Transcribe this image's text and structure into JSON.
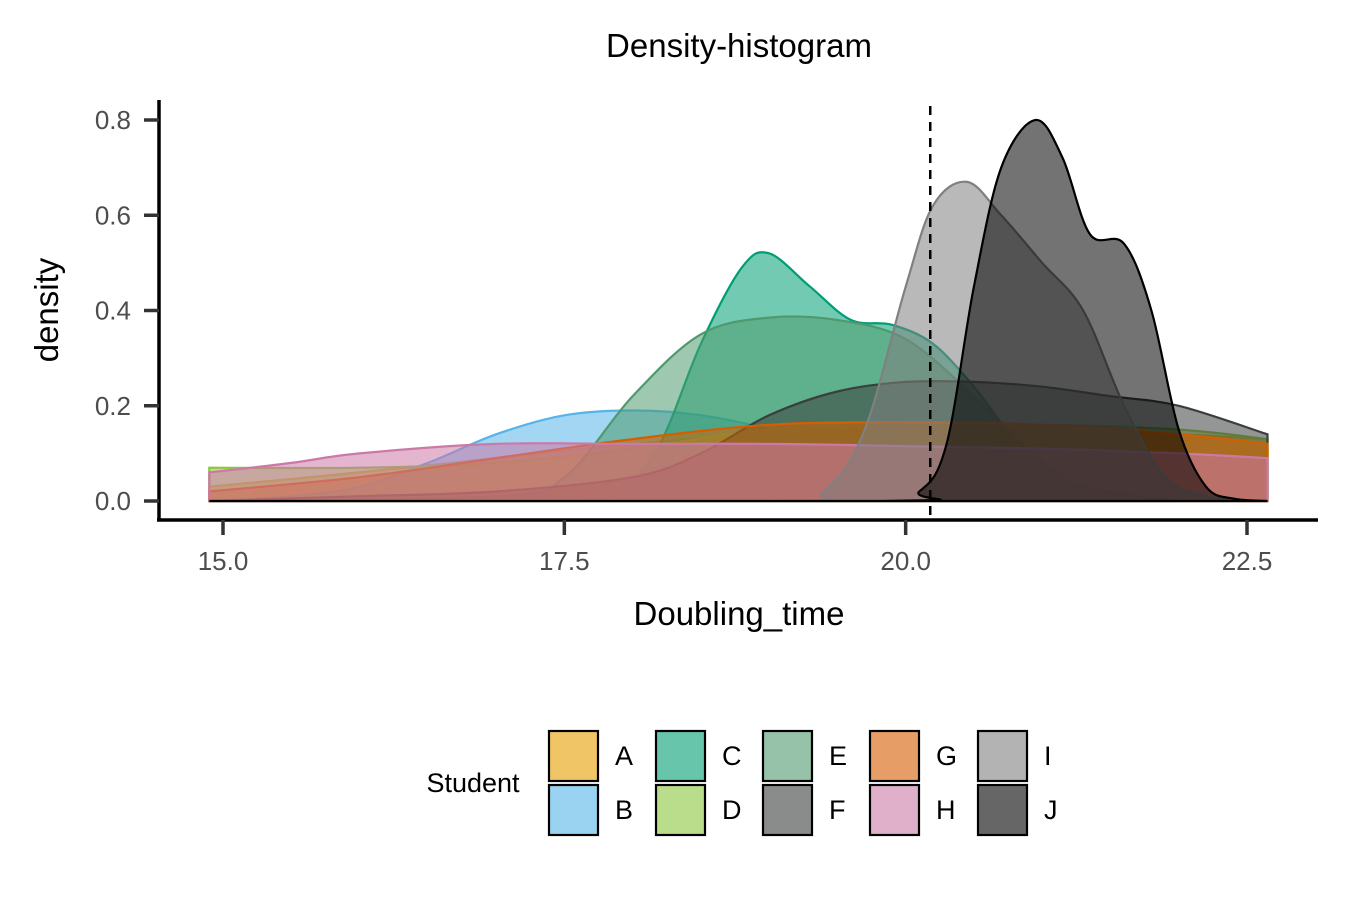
{
  "chart_data": {
    "type": "area",
    "title": "Density-histogram",
    "xlabel": "Doubling_time",
    "ylabel": "density",
    "xlim": [
      14.9,
      22.65
    ],
    "ylim": [
      0,
      0.8
    ],
    "x_ticks": [
      {
        "value": 15.0,
        "label": "15.0"
      },
      {
        "value": 17.5,
        "label": "17.5"
      },
      {
        "value": 20.0,
        "label": "20.0"
      },
      {
        "value": 22.5,
        "label": "22.5"
      }
    ],
    "y_ticks": [
      {
        "value": 0.0,
        "label": "0.0"
      },
      {
        "value": 0.2,
        "label": "0.2"
      },
      {
        "value": 0.4,
        "label": "0.4"
      },
      {
        "value": 0.6,
        "label": "0.6"
      },
      {
        "value": 0.8,
        "label": "0.8"
      }
    ],
    "vline": {
      "x": 20.18,
      "style": "dashed"
    },
    "legend": {
      "title": "Student",
      "position": "bottom"
    },
    "grid": false,
    "series": [
      {
        "name": "A",
        "fill": "#E69F00",
        "stroke": "#E69F00",
        "x": [
          14.9,
          16.0,
          17.0,
          18.0,
          19.0,
          20.0,
          21.0,
          22.0,
          22.65
        ],
        "y": [
          0.03,
          0.06,
          0.09,
          0.12,
          0.14,
          0.15,
          0.15,
          0.14,
          0.13
        ]
      },
      {
        "name": "B",
        "fill": "#56B4E9",
        "stroke": "#56B4E9",
        "x": [
          14.9,
          15.5,
          16.0,
          16.5,
          17.0,
          17.5,
          18.0,
          18.5,
          19.0,
          19.5,
          20.0,
          20.5,
          21.0,
          21.5,
          22.0
        ],
        "y": [
          0.0,
          0.01,
          0.03,
          0.08,
          0.14,
          0.18,
          0.19,
          0.18,
          0.15,
          0.1,
          0.06,
          0.03,
          0.01,
          0.0,
          0.0
        ]
      },
      {
        "name": "C",
        "fill": "#009E73",
        "stroke": "#009E73",
        "x": [
          14.9,
          17.5,
          17.9,
          18.2,
          18.5,
          18.8,
          19.0,
          19.3,
          19.6,
          19.9,
          20.2,
          20.5,
          20.8,
          21.2,
          21.6,
          22.0,
          22.65
        ],
        "y": [
          0.0,
          0.0,
          0.02,
          0.12,
          0.33,
          0.49,
          0.52,
          0.45,
          0.38,
          0.37,
          0.33,
          0.24,
          0.13,
          0.04,
          0.01,
          0.0,
          0.0
        ]
      },
      {
        "name": "D",
        "fill": "#8CC63E",
        "stroke": "#8CC63E",
        "x": [
          14.9,
          16.0,
          17.0,
          18.0,
          19.0,
          20.0,
          21.0,
          22.0,
          22.65
        ],
        "y": [
          0.07,
          0.07,
          0.08,
          0.11,
          0.15,
          0.16,
          0.16,
          0.15,
          0.13
        ]
      },
      {
        "name": "E",
        "fill": "#4E9A6E",
        "stroke": "#4E9A6E",
        "x": [
          14.9,
          17.0,
          17.5,
          18.0,
          18.5,
          19.0,
          19.5,
          20.0,
          20.5,
          21.0,
          21.3,
          21.7,
          22.0
        ],
        "y": [
          0.0,
          0.01,
          0.05,
          0.22,
          0.35,
          0.385,
          0.38,
          0.34,
          0.22,
          0.08,
          0.03,
          0.01,
          0.0
        ]
      },
      {
        "name": "F",
        "fill": "#3A3F3D",
        "stroke": "#3A3F3D",
        "x": [
          14.9,
          16.0,
          17.0,
          18.0,
          18.5,
          19.0,
          19.5,
          20.0,
          20.5,
          21.0,
          21.5,
          22.0,
          22.65
        ],
        "y": [
          0.0,
          0.01,
          0.02,
          0.05,
          0.1,
          0.18,
          0.23,
          0.25,
          0.25,
          0.24,
          0.22,
          0.2,
          0.14
        ]
      },
      {
        "name": "G",
        "fill": "#D55E00",
        "stroke": "#D55E00",
        "x": [
          14.9,
          16.0,
          17.0,
          18.0,
          19.0,
          20.0,
          21.0,
          22.0,
          22.65
        ],
        "y": [
          0.02,
          0.05,
          0.09,
          0.13,
          0.16,
          0.165,
          0.16,
          0.14,
          0.12
        ]
      },
      {
        "name": "H",
        "fill": "#CC79A7",
        "stroke": "#CC79A7",
        "x": [
          14.9,
          15.5,
          16.0,
          17.0,
          18.0,
          19.0,
          20.0,
          21.0,
          22.0,
          22.65
        ],
        "y": [
          0.06,
          0.08,
          0.1,
          0.12,
          0.12,
          0.12,
          0.115,
          0.11,
          0.1,
          0.09
        ]
      },
      {
        "name": "I",
        "fill": "#808080",
        "stroke": "#808080",
        "x": [
          14.9,
          19.0,
          19.4,
          19.7,
          20.0,
          20.2,
          20.45,
          20.7,
          21.0,
          21.3,
          21.6,
          21.9,
          22.2,
          22.5
        ],
        "y": [
          0.0,
          0.0,
          0.02,
          0.15,
          0.45,
          0.62,
          0.67,
          0.6,
          0.5,
          0.4,
          0.2,
          0.05,
          0.01,
          0.0
        ]
      },
      {
        "name": "J",
        "fill": "#000000",
        "stroke": "#000000",
        "x": [
          14.9,
          19.8,
          20.1,
          20.3,
          20.5,
          20.7,
          20.95,
          21.15,
          21.35,
          21.6,
          21.8,
          22.0,
          22.2,
          22.4,
          22.65
        ],
        "y": [
          0.0,
          0.0,
          0.02,
          0.12,
          0.45,
          0.7,
          0.8,
          0.72,
          0.56,
          0.54,
          0.4,
          0.15,
          0.03,
          0.005,
          0.0
        ]
      }
    ]
  }
}
